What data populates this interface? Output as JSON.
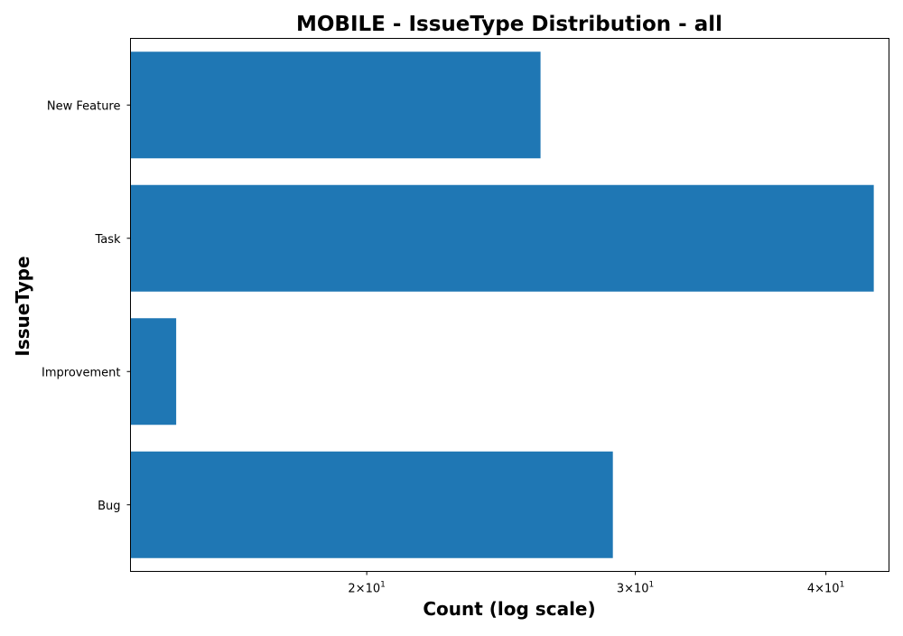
{
  "chart_data": {
    "type": "bar",
    "orientation": "horizontal",
    "title": "MOBILE - IssueType Distribution - all",
    "xlabel": "Count (log scale)",
    "ylabel": "IssueType",
    "x_scale": "log",
    "xlim": [
      14,
      44
    ],
    "categories": [
      "New Feature",
      "Task",
      "Improvement",
      "Bug"
    ],
    "values": [
      26,
      43,
      15,
      29
    ],
    "x_ticks": [
      {
        "value": 20,
        "mantissa": "2",
        "base": "10",
        "exp": "1"
      },
      {
        "value": 30,
        "mantissa": "3",
        "base": "10",
        "exp": "1"
      },
      {
        "value": 40,
        "mantissa": "4",
        "base": "10",
        "exp": "1"
      }
    ],
    "bar_color": "#1f77b4",
    "grid": false,
    "legend": "none"
  }
}
